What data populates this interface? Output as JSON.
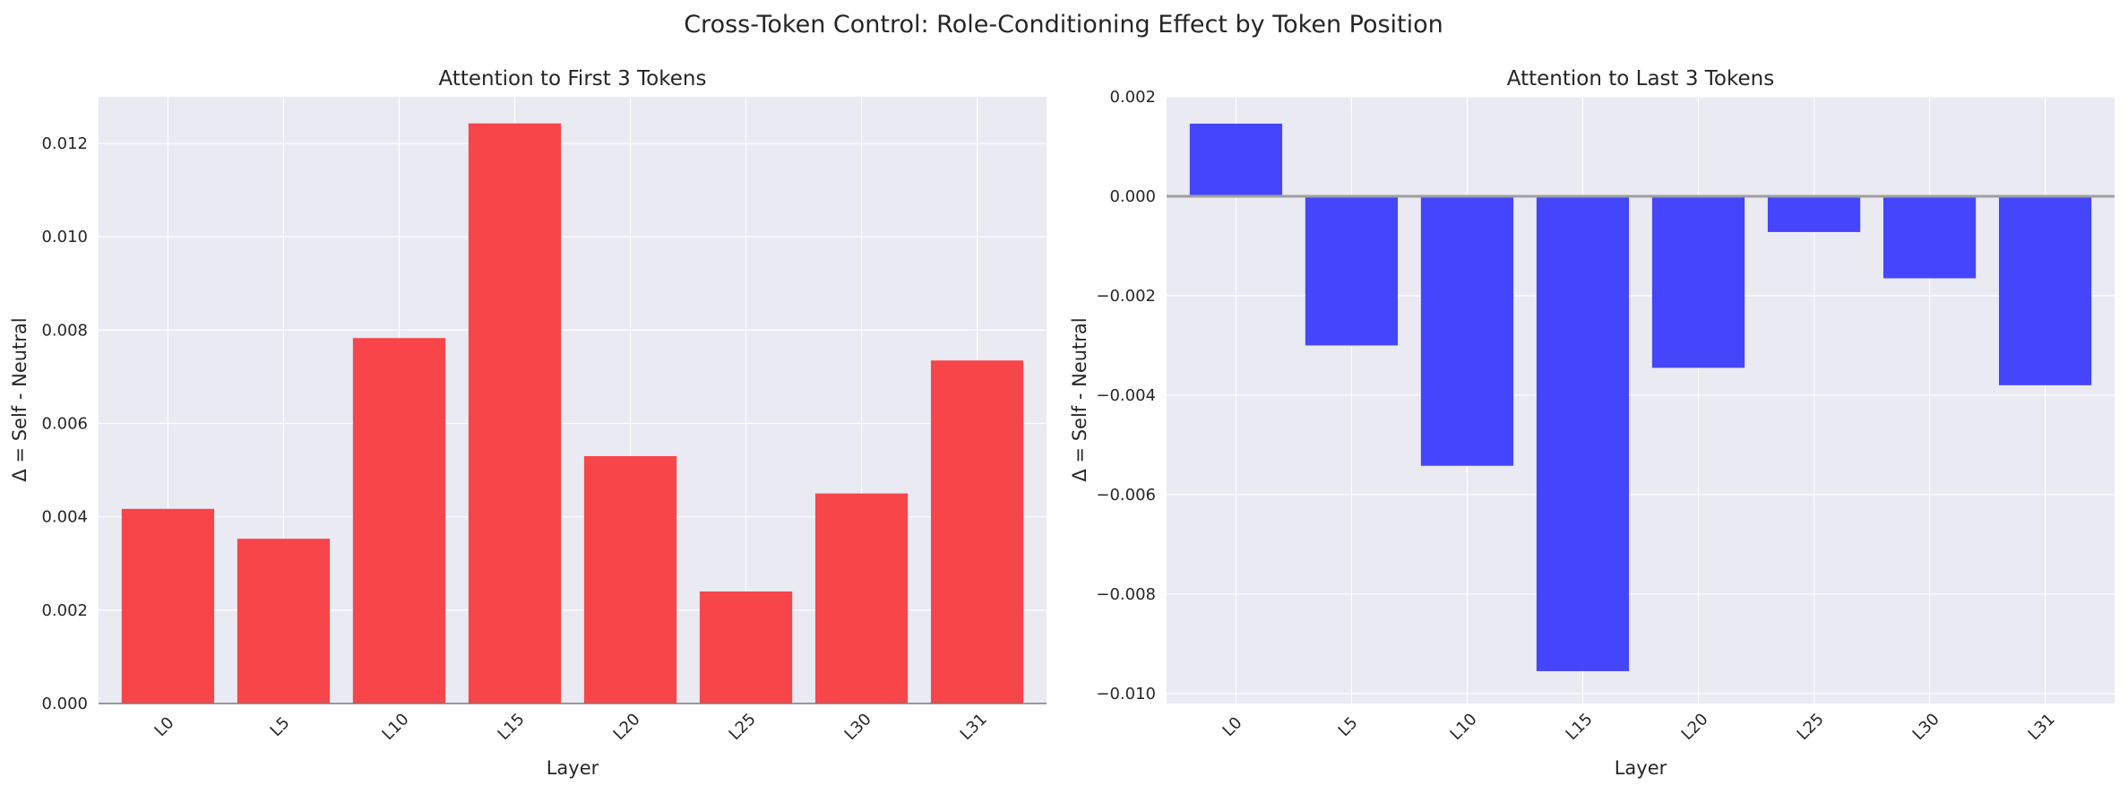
{
  "suptitle": "Cross-Token Control: Role-Conditioning Effect by Token Position",
  "chart_data": [
    {
      "type": "bar",
      "title": "Attention to First 3 Tokens",
      "xlabel": "Layer",
      "ylabel": "Δ = Self - Neutral",
      "categories": [
        "L0",
        "L5",
        "L10",
        "L15",
        "L20",
        "L25",
        "L30",
        "L31"
      ],
      "values": [
        0.00417,
        0.00353,
        0.00783,
        0.01243,
        0.0053,
        0.0024,
        0.0045,
        0.00735
      ],
      "ylim": [
        0,
        0.013
      ],
      "yticks": [
        0.0,
        0.002,
        0.004,
        0.006,
        0.008,
        0.01,
        0.012
      ],
      "ytick_labels": [
        "0.000",
        "0.002",
        "0.004",
        "0.006",
        "0.008",
        "0.010",
        "0.012"
      ],
      "color": "#f7454a",
      "grid": true
    },
    {
      "type": "bar",
      "title": "Attention to Last 3 Tokens",
      "xlabel": "Layer",
      "ylabel": "Δ = Self - Neutral",
      "categories": [
        "L0",
        "L5",
        "L10",
        "L15",
        "L20",
        "L25",
        "L30",
        "L31"
      ],
      "values": [
        0.00146,
        -0.003,
        -0.00542,
        -0.00955,
        -0.00345,
        -0.00072,
        -0.00165,
        -0.0038
      ],
      "ylim": [
        -0.0102,
        0.002
      ],
      "yticks": [
        -0.01,
        -0.008,
        -0.006,
        -0.004,
        -0.002,
        0.0,
        0.002
      ],
      "ytick_labels": [
        "−0.010",
        "−0.008",
        "−0.006",
        "−0.004",
        "−0.002",
        "0.000",
        "0.002"
      ],
      "color": "#4545fc",
      "zero_line": true,
      "grid": true
    }
  ]
}
